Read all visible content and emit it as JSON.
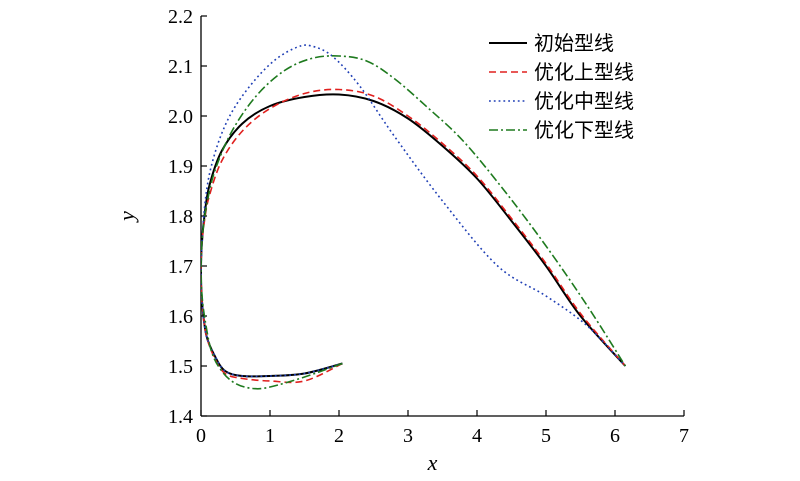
{
  "chart_data": {
    "type": "line",
    "xlabel": "x",
    "ylabel": "y",
    "xlim": [
      0,
      7
    ],
    "ylim": [
      1.4,
      2.2
    ],
    "xticks": [
      "0",
      "1",
      "2",
      "3",
      "4",
      "5",
      "6",
      "7"
    ],
    "yticks": [
      "1.4",
      "1.5",
      "1.6",
      "1.7",
      "1.8",
      "1.9",
      "2.0",
      "2.1",
      "2.2"
    ],
    "grid": false,
    "legend_position": "top-right",
    "series": [
      {
        "name": "初始型线",
        "color": "#000000",
        "dash": "solid",
        "x": [
          2.05,
          1.5,
          1.0,
          0.6,
          0.35,
          0.2,
          0.08,
          0.02,
          0.0,
          0.01,
          0.05,
          0.12,
          0.3,
          0.6,
          1.0,
          1.5,
          2.0,
          2.5,
          3.0,
          3.5,
          4.0,
          4.5,
          5.0,
          5.5,
          6.15
        ],
        "y": [
          1.505,
          1.485,
          1.48,
          1.48,
          1.49,
          1.52,
          1.56,
          1.62,
          1.68,
          1.74,
          1.8,
          1.86,
          1.93,
          1.985,
          2.02,
          2.038,
          2.043,
          2.03,
          1.995,
          1.94,
          1.875,
          1.79,
          1.7,
          1.6,
          1.5
        ]
      },
      {
        "name": "优化上型线",
        "color": "#e0201e",
        "dash": "dashed",
        "x": [
          2.05,
          1.5,
          1.0,
          0.6,
          0.35,
          0.2,
          0.08,
          0.02,
          0.0,
          0.01,
          0.05,
          0.12,
          0.3,
          0.6,
          1.0,
          1.5,
          2.0,
          2.5,
          3.0,
          3.5,
          4.0,
          4.5,
          5.0,
          5.5,
          6.15
        ],
        "y": [
          1.505,
          1.47,
          1.47,
          1.475,
          1.485,
          1.515,
          1.56,
          1.62,
          1.68,
          1.74,
          1.79,
          1.84,
          1.91,
          1.97,
          2.015,
          2.045,
          2.053,
          2.04,
          2.0,
          1.945,
          1.88,
          1.795,
          1.705,
          1.605,
          1.5
        ]
      },
      {
        "name": "优化中型线",
        "color": "#1f3fb5",
        "dash": "dotted",
        "x": [
          2.05,
          1.5,
          1.0,
          0.6,
          0.35,
          0.2,
          0.08,
          0.02,
          0.0,
          0.02,
          0.07,
          0.15,
          0.3,
          0.5,
          0.8,
          1.1,
          1.4,
          1.6,
          1.9,
          2.3,
          2.8,
          3.5,
          4.3,
          5.0,
          5.6,
          6.15
        ],
        "y": [
          1.505,
          1.485,
          1.48,
          1.48,
          1.49,
          1.52,
          1.56,
          1.62,
          1.68,
          1.76,
          1.84,
          1.9,
          1.965,
          2.02,
          2.075,
          2.115,
          2.138,
          2.14,
          2.12,
          2.06,
          1.96,
          1.83,
          1.7,
          1.64,
          1.58,
          1.5
        ]
      },
      {
        "name": "优化下型线",
        "color": "#1e7a1e",
        "dash": "dashdot",
        "x": [
          2.05,
          1.5,
          1.0,
          0.75,
          0.5,
          0.3,
          0.15,
          0.05,
          0.01,
          0.0,
          0.02,
          0.08,
          0.2,
          0.45,
          0.8,
          1.2,
          1.6,
          2.0,
          2.4,
          2.8,
          3.3,
          3.8,
          4.4,
          5.0,
          5.6,
          6.15
        ],
        "y": [
          1.505,
          1.478,
          1.458,
          1.455,
          1.465,
          1.49,
          1.53,
          1.6,
          1.65,
          1.7,
          1.76,
          1.82,
          1.89,
          1.97,
          2.04,
          2.09,
          2.115,
          2.12,
          2.11,
          2.075,
          2.015,
          1.95,
          1.85,
          1.74,
          1.62,
          1.5
        ]
      }
    ]
  }
}
